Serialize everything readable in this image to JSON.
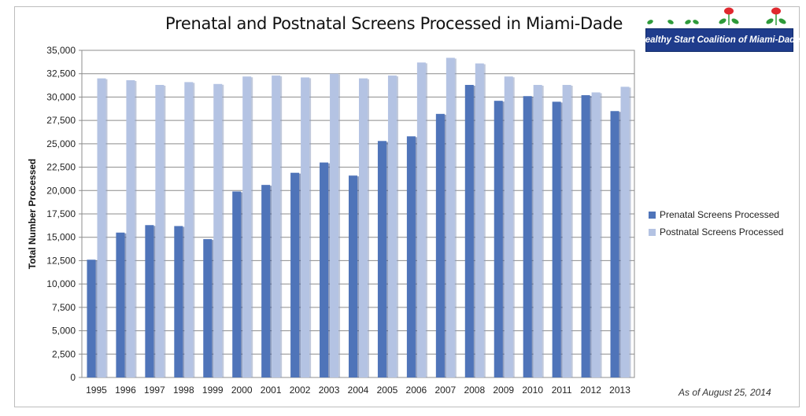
{
  "chart_data": {
    "type": "bar",
    "title": "Prenatal and Postnatal Screens Processed in Miami-Dade",
    "ylabel": "Total Number Processed",
    "xlabel": "",
    "ylim": [
      0,
      35000
    ],
    "ytick_step": 2500,
    "grid": true,
    "legend_position": "right",
    "categories": [
      "1995",
      "1996",
      "1997",
      "1998",
      "1999",
      "2000",
      "2001",
      "2002",
      "2003",
      "2004",
      "2005",
      "2006",
      "2007",
      "2008",
      "2009",
      "2010",
      "2011",
      "2012",
      "2013"
    ],
    "series": [
      {
        "name": "Prenatal Screens Processed",
        "color": "#4f74b9",
        "values": [
          12600,
          15500,
          16300,
          16200,
          14800,
          19900,
          20600,
          21900,
          23000,
          21600,
          25300,
          25800,
          28200,
          31300,
          29600,
          30100,
          29500,
          30200,
          28500
        ]
      },
      {
        "name": "Postnatal Screens Processed",
        "color": "#b4c3e3",
        "values": [
          32000,
          31800,
          31300,
          31600,
          31400,
          32200,
          32300,
          32100,
          32500,
          32000,
          32300,
          33700,
          34200,
          33600,
          32200,
          31300,
          31300,
          30500,
          31100
        ]
      }
    ]
  },
  "logo": {
    "text": "Healthy Start Coalition of Miami-Dade"
  },
  "note": "As of August 25, 2014"
}
